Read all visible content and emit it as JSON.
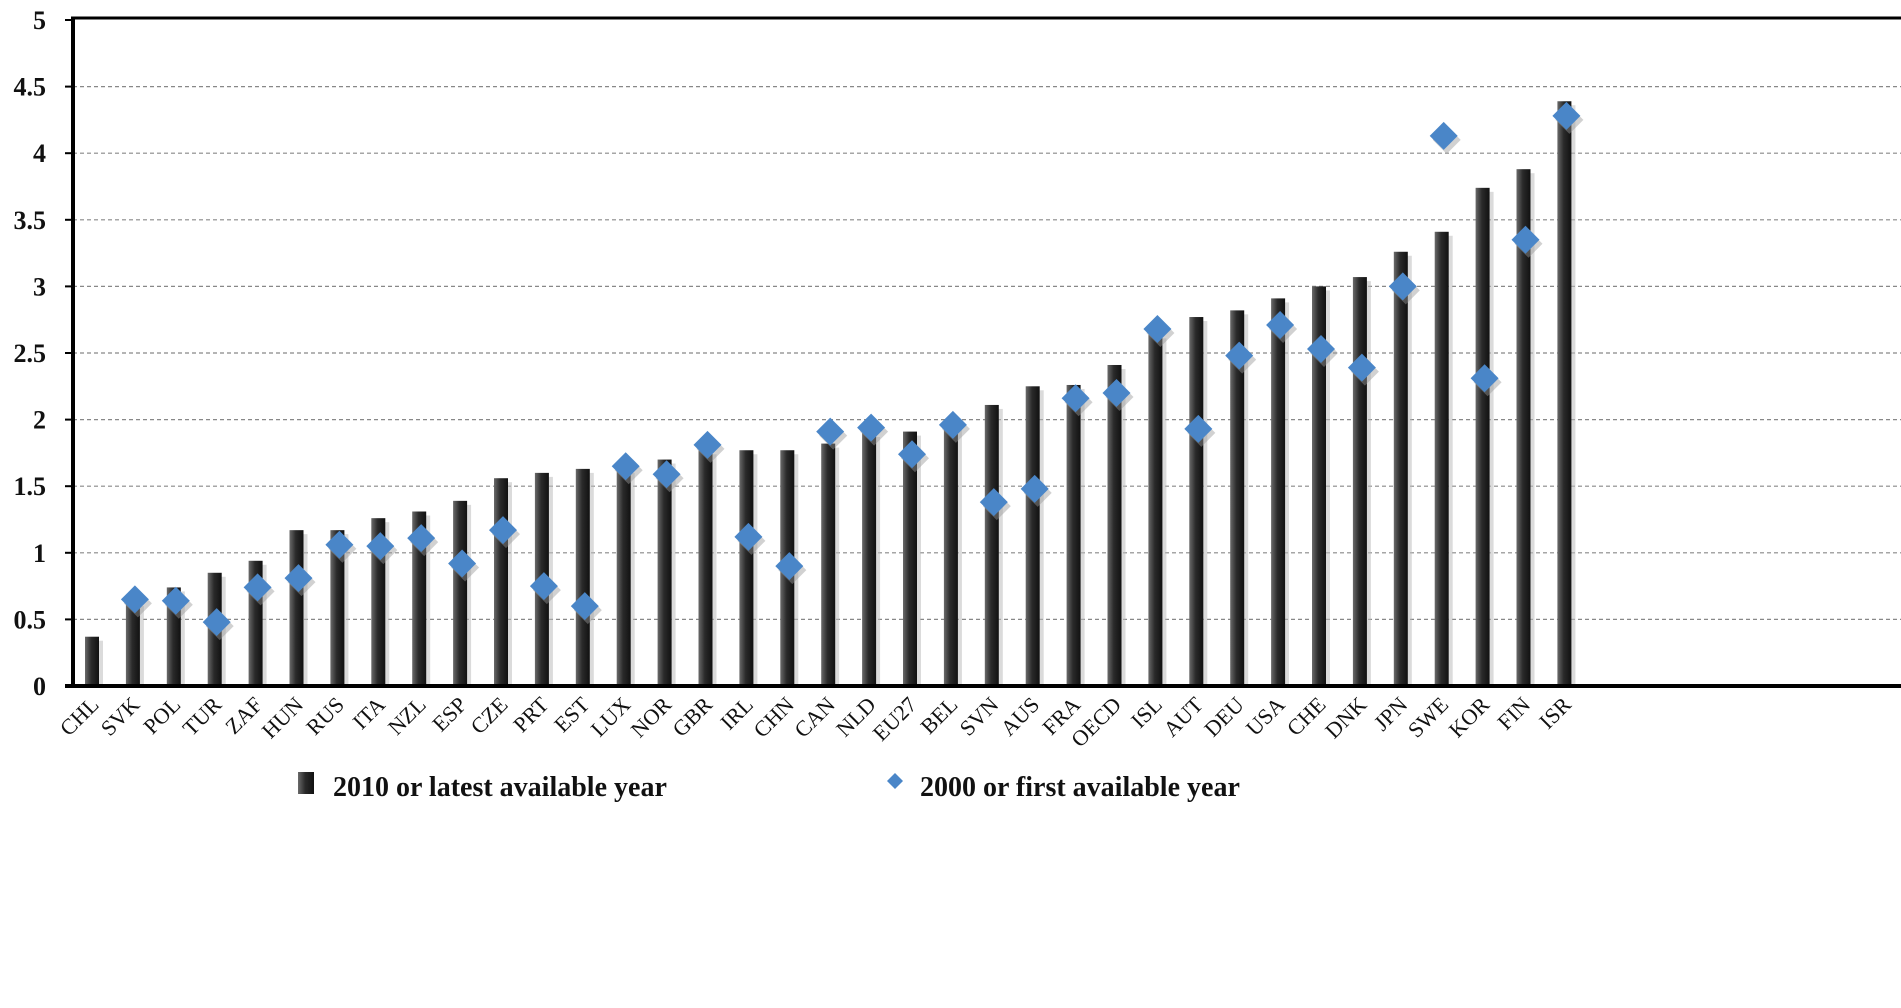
{
  "chart_data": {
    "type": "bar",
    "categories": [
      "CHL",
      "SVK",
      "POL",
      "TUR",
      "ZAF",
      "HUN",
      "RUS",
      "ITA",
      "NZL",
      "ESP",
      "CZE",
      "PRT",
      "EST",
      "LUX",
      "NOR",
      "GBR",
      "IRL",
      "CHN",
      "CAN",
      "NLD",
      "EU27",
      "BEL",
      "SVN",
      "AUS",
      "FRA",
      "OECD",
      "ISL",
      "AUT",
      "DEU",
      "USA",
      "CHE",
      "DNK",
      "JPN",
      "SWE",
      "KOR",
      "FIN",
      "ISR"
    ],
    "series": [
      {
        "name": "2010 or latest available year",
        "kind": "bar",
        "color": "#222222",
        "values": [
          0.37,
          0.63,
          0.74,
          0.85,
          0.94,
          1.17,
          1.17,
          1.26,
          1.31,
          1.39,
          1.56,
          1.6,
          1.63,
          1.63,
          1.7,
          1.77,
          1.77,
          1.77,
          1.82,
          1.9,
          1.91,
          1.98,
          2.11,
          2.25,
          2.26,
          2.41,
          2.64,
          2.77,
          2.82,
          2.91,
          3.0,
          3.07,
          3.26,
          3.41,
          3.74,
          3.88,
          4.39
        ]
      },
      {
        "name": "2000 or first available year",
        "kind": "marker",
        "color": "#4a86c8",
        "values": [
          null,
          0.65,
          0.64,
          0.48,
          0.74,
          0.81,
          1.06,
          1.05,
          1.11,
          0.92,
          1.17,
          0.75,
          0.6,
          1.65,
          1.59,
          1.81,
          1.12,
          0.9,
          1.91,
          1.94,
          1.74,
          1.96,
          1.38,
          1.48,
          2.16,
          2.2,
          2.68,
          1.93,
          2.48,
          2.71,
          2.53,
          2.39,
          3.0,
          4.13,
          2.31,
          3.35,
          4.28
        ]
      }
    ],
    "ylim": [
      0,
      5
    ],
    "yticks": [
      {
        "value": 0,
        "label": "0"
      },
      {
        "value": 0.5,
        "label": "0.5"
      },
      {
        "value": 1,
        "label": "1"
      },
      {
        "value": 1.5,
        "label": "1.5"
      },
      {
        "value": 2,
        "label": "2"
      },
      {
        "value": 2.5,
        "label": "2.5"
      },
      {
        "value": 3,
        "label": "3"
      },
      {
        "value": 3.5,
        "label": "3.5"
      },
      {
        "value": 4,
        "label": "4"
      },
      {
        "value": 4.5,
        "label": "4.5"
      },
      {
        "value": 5,
        "label": "5"
      }
    ],
    "grid": true,
    "legend_position": "bottom",
    "title": "",
    "xlabel": "",
    "ylabel": ""
  }
}
